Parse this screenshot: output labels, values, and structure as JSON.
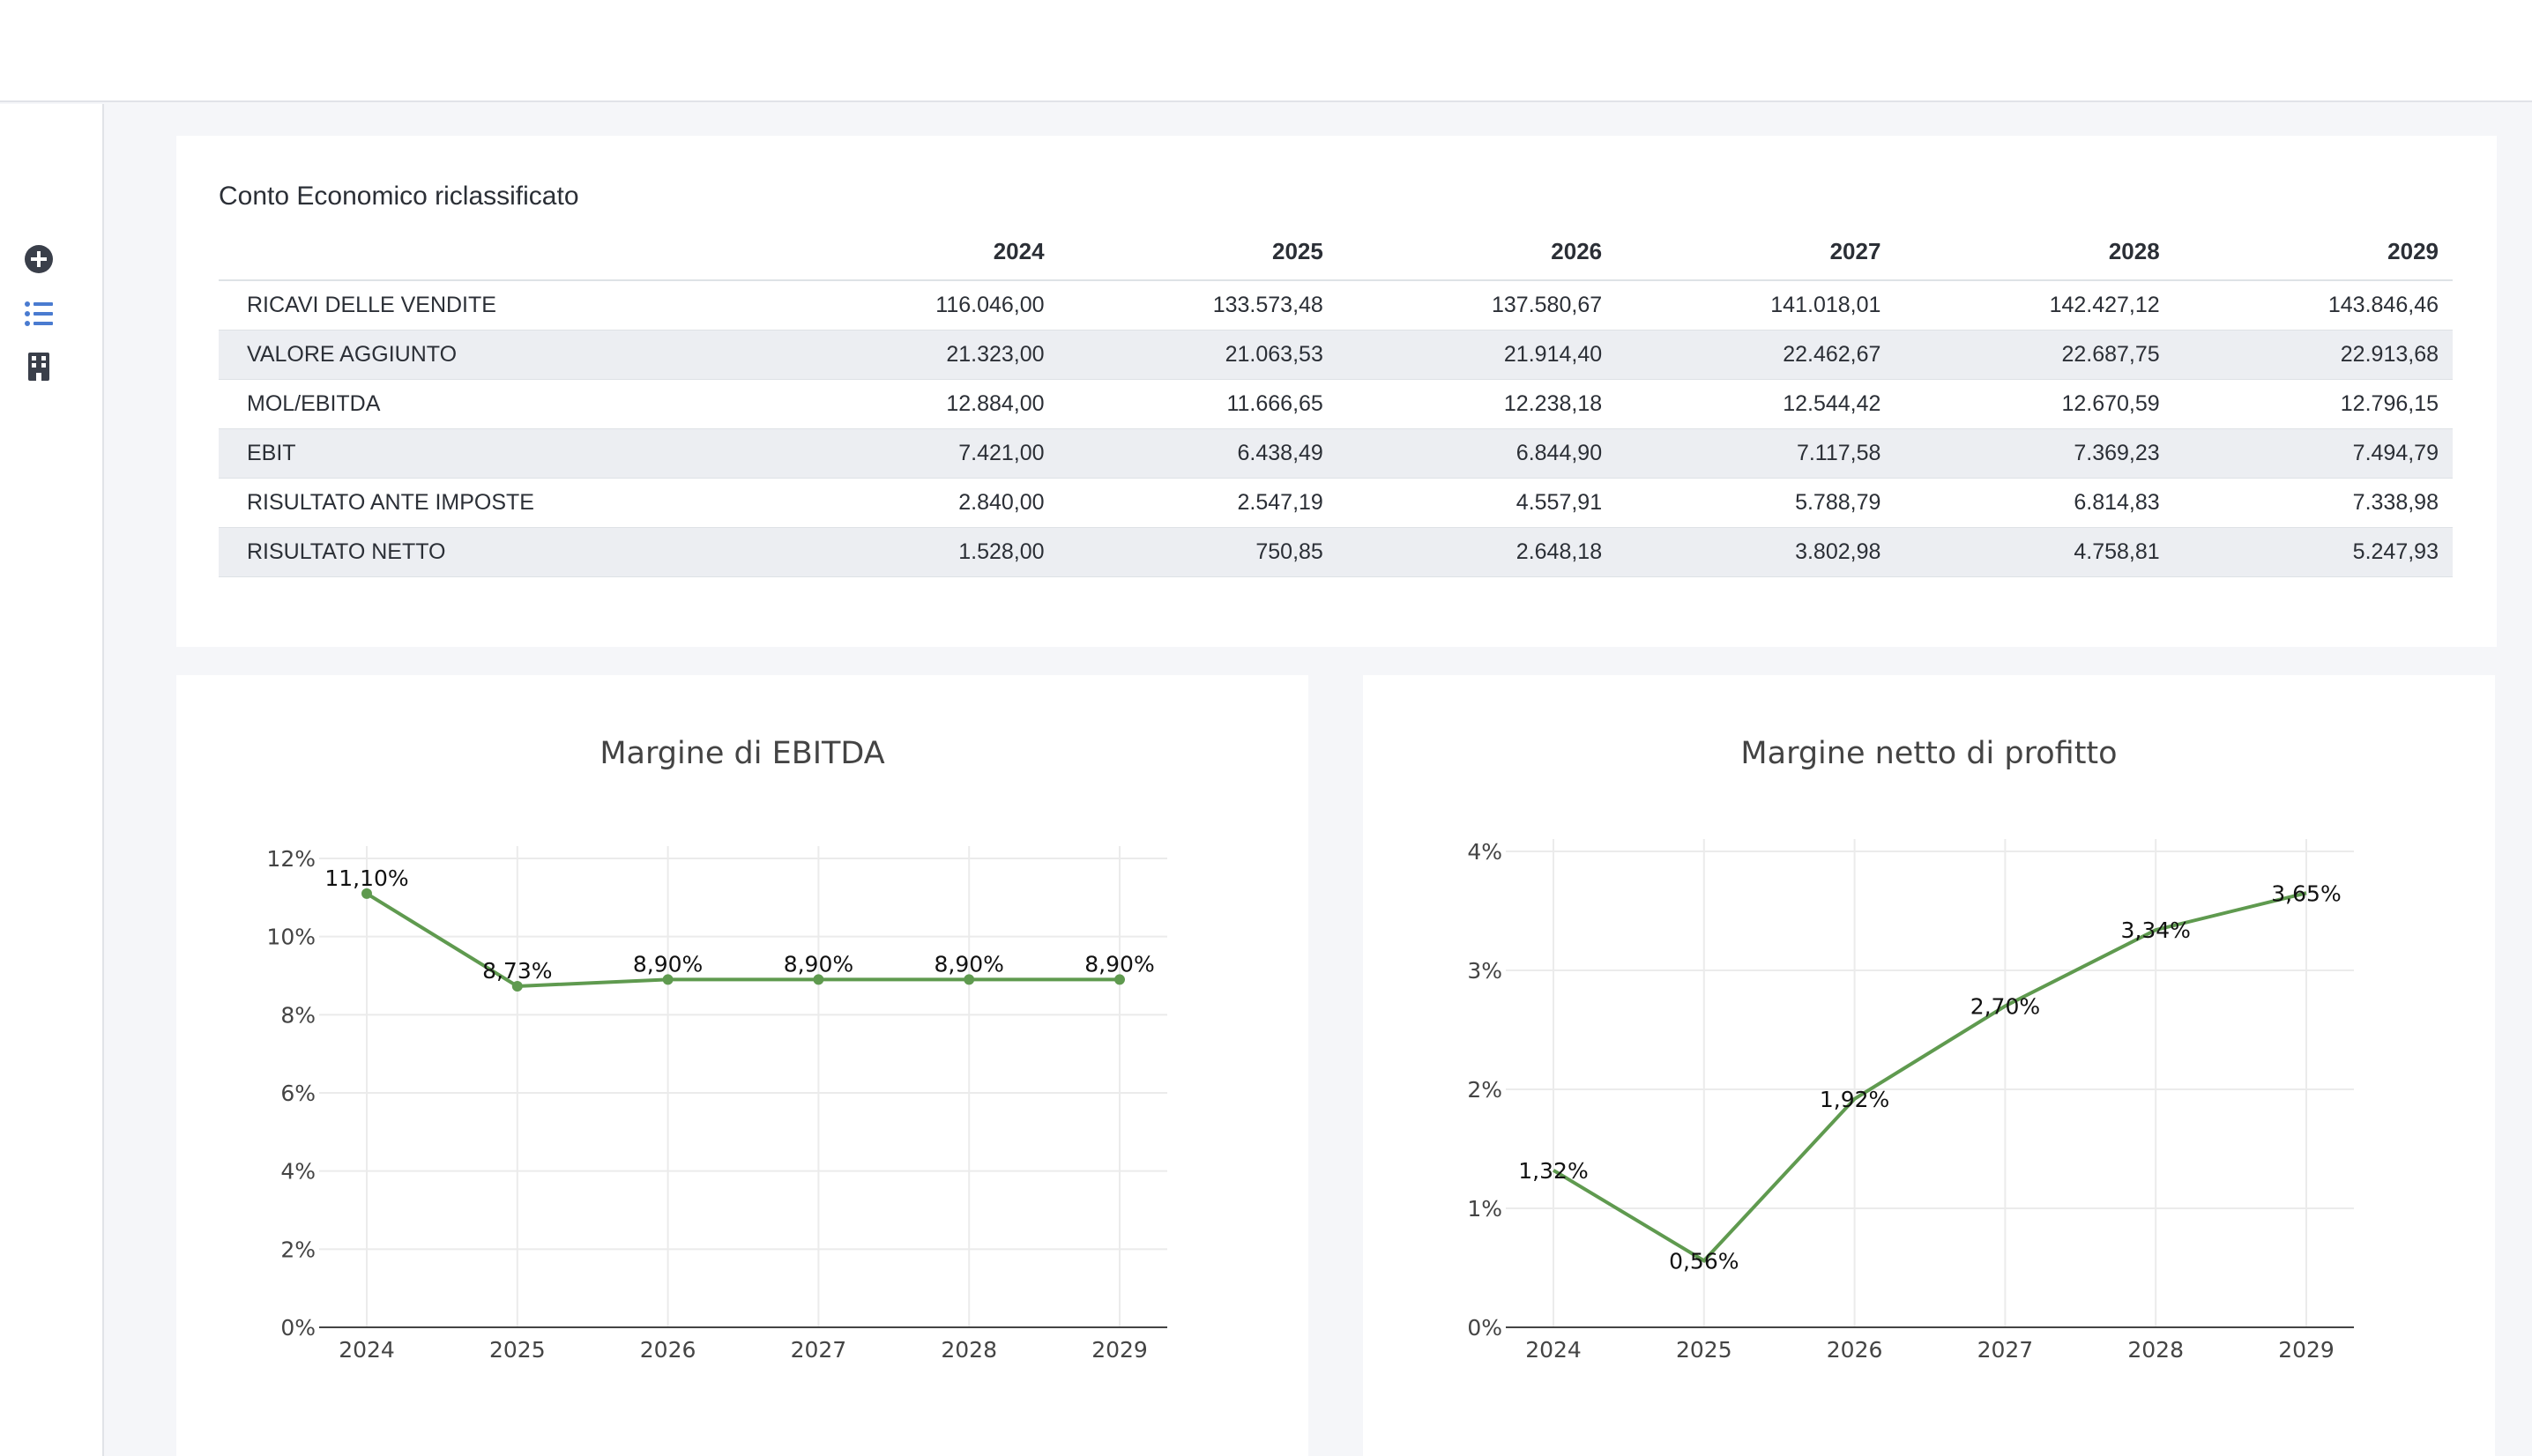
{
  "sidebar": {
    "items": [
      {
        "icon": "plus-circle-icon",
        "color": "#3a3f4a"
      },
      {
        "icon": "list-icon",
        "color": "#4a7bd0"
      },
      {
        "icon": "building-icon",
        "color": "#3a3f4a"
      }
    ]
  },
  "income_statement": {
    "title": "Conto Economico riclassificato",
    "years": [
      "2024",
      "2025",
      "2026",
      "2027",
      "2028",
      "2029"
    ],
    "rows": [
      {
        "label": "RICAVI DELLE VENDITE",
        "values": [
          "116.046,00",
          "133.573,48",
          "137.580,67",
          "141.018,01",
          "142.427,12",
          "143.846,46"
        ]
      },
      {
        "label": "VALORE AGGIUNTO",
        "values": [
          "21.323,00",
          "21.063,53",
          "21.914,40",
          "22.462,67",
          "22.687,75",
          "22.913,68"
        ]
      },
      {
        "label": "MOL/EBITDA",
        "values": [
          "12.884,00",
          "11.666,65",
          "12.238,18",
          "12.544,42",
          "12.670,59",
          "12.796,15"
        ]
      },
      {
        "label": "EBIT",
        "values": [
          "7.421,00",
          "6.438,49",
          "6.844,90",
          "7.117,58",
          "7.369,23",
          "7.494,79"
        ]
      },
      {
        "label": "RISULTATO ANTE IMPOSTE",
        "values": [
          "2.840,00",
          "2.547,19",
          "4.557,91",
          "5.788,79",
          "6.814,83",
          "7.338,98"
        ]
      },
      {
        "label": "RISULTATO NETTO",
        "values": [
          "1.528,00",
          "750,85",
          "2.648,18",
          "3.802,98",
          "4.758,81",
          "5.247,93"
        ]
      }
    ]
  },
  "chart_data": [
    {
      "type": "line",
      "title": "Margine di EBITDA",
      "x": [
        "2024",
        "2025",
        "2026",
        "2027",
        "2028",
        "2029"
      ],
      "values": [
        11.1,
        8.73,
        8.9,
        8.9,
        8.9,
        8.9
      ],
      "data_labels": [
        "11,10%",
        "8,73%",
        "8,90%",
        "8,90%",
        "8,90%",
        "8,90%"
      ],
      "yticks": [
        "0%",
        "2%",
        "4%",
        "6%",
        "8%",
        "10%",
        "12%"
      ],
      "ytick_values": [
        0,
        2,
        4,
        6,
        8,
        10,
        12
      ],
      "ylim": [
        0,
        12
      ],
      "markers": true,
      "grid": true,
      "color": "#5f9a4f"
    },
    {
      "type": "line",
      "title": "Margine netto di profitto",
      "x": [
        "2024",
        "2025",
        "2026",
        "2027",
        "2028",
        "2029"
      ],
      "values": [
        1.32,
        0.56,
        1.92,
        2.7,
        3.34,
        3.65
      ],
      "data_labels": [
        "1,32%",
        "0,56%",
        "1,92%",
        "2,70%",
        "3,34%",
        "3,65%"
      ],
      "yticks": [
        "0%",
        "1%",
        "2%",
        "3%",
        "4%"
      ],
      "ytick_values": [
        0,
        1,
        2,
        3,
        4
      ],
      "ylim": [
        0,
        4
      ],
      "markers": false,
      "grid": true,
      "color": "#5f9a4f"
    }
  ]
}
